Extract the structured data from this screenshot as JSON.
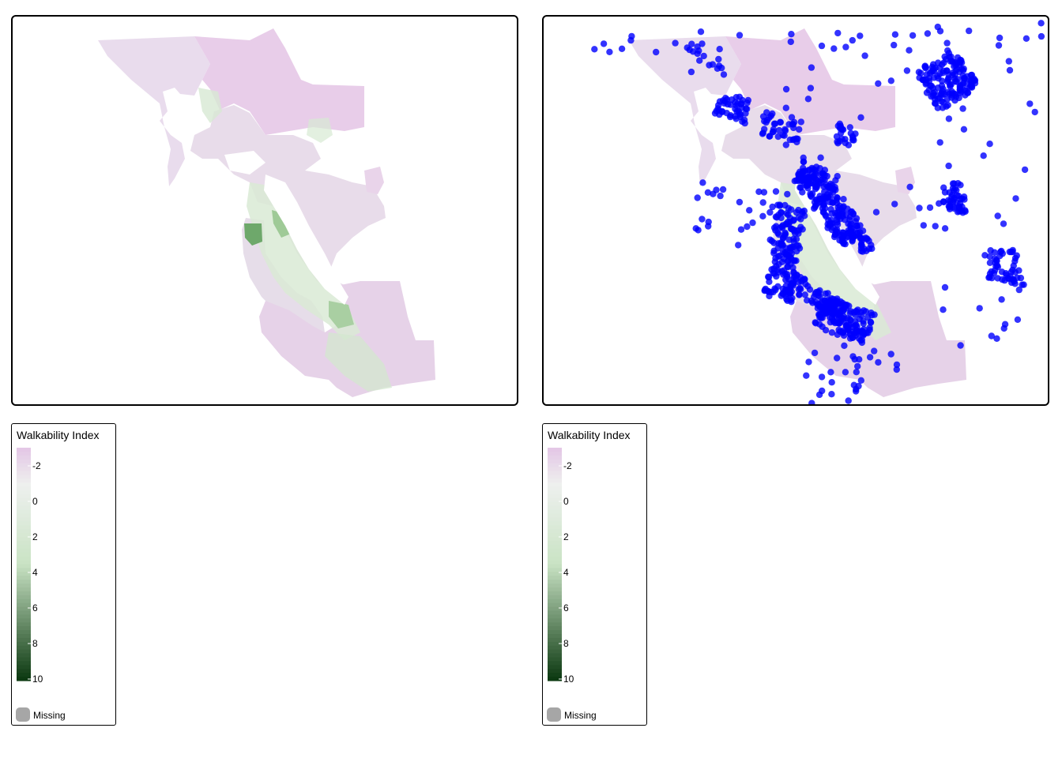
{
  "maps": [
    {
      "id": "left",
      "layers": [
        "walkability-choropleth"
      ]
    },
    {
      "id": "right",
      "layers": [
        "walkability-choropleth",
        "point-locations"
      ]
    }
  ],
  "legend": {
    "title": "Walkability Index",
    "ticks": [
      "-2",
      "0",
      "2",
      "4",
      "6",
      "8",
      "10"
    ],
    "missing_label": "Missing"
  },
  "colors": {
    "low": "#e4c8e6",
    "mid": "#eef0ee",
    "high": "#0d3a12",
    "light_green": "#c9e3c4",
    "points": "#0000ff",
    "missing": "#a6a6a6"
  }
}
